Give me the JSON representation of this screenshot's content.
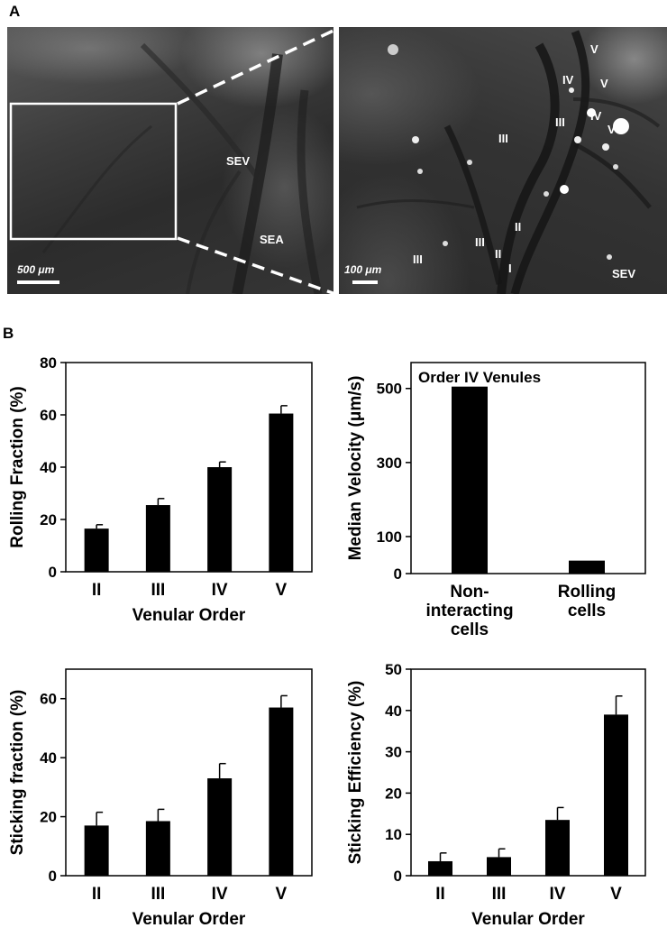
{
  "figure": {
    "panel_a": "A",
    "panel_b": "B",
    "left_image": {
      "labels": {
        "sev": "SEV",
        "sea": "SEA"
      },
      "scale_bar": "500 μm"
    },
    "right_image": {
      "labels": [
        {
          "text": "V",
          "fx": 0.788,
          "fy": 0.085
        },
        {
          "text": "IV",
          "fx": 0.704,
          "fy": 0.2
        },
        {
          "text": "V",
          "fx": 0.818,
          "fy": 0.213
        },
        {
          "text": "III",
          "fx": 0.68,
          "fy": 0.357
        },
        {
          "text": "IV",
          "fx": 0.788,
          "fy": 0.336
        },
        {
          "text": "V",
          "fx": 0.84,
          "fy": 0.385
        },
        {
          "text": "III",
          "fx": 0.508,
          "fy": 0.42
        },
        {
          "text": "II",
          "fx": 0.557,
          "fy": 0.75
        },
        {
          "text": "III",
          "fx": 0.438,
          "fy": 0.806
        },
        {
          "text": "II",
          "fx": 0.496,
          "fy": 0.85
        },
        {
          "text": "III",
          "fx": 0.246,
          "fy": 0.87
        },
        {
          "text": "I",
          "fx": 0.539,
          "fy": 0.907
        },
        {
          "text": "SEV",
          "fx": 0.855,
          "fy": 0.925
        }
      ],
      "scale_bar": "100 μm"
    }
  },
  "chart_data": [
    {
      "id": "rolling",
      "type": "bar",
      "categories": [
        "II",
        "III",
        "IV",
        "V"
      ],
      "values": [
        16.5,
        25.5,
        40,
        60.5
      ],
      "errors": [
        1.5,
        2.5,
        2,
        3
      ],
      "ylabel": "Rolling Fraction (%)",
      "xlabel": "Venular Order",
      "ylim": [
        0,
        80
      ],
      "yticks": [
        0,
        20,
        40,
        60,
        80
      ],
      "grid": false
    },
    {
      "id": "velocity",
      "type": "bar",
      "categories": [
        "Non-\ninteracting\ncells",
        "Rolling\ncells"
      ],
      "values": [
        505,
        35
      ],
      "ylabel": "Median Velocity (μm/s)",
      "xlabel": "",
      "annotation": "Order IV Venules",
      "ylim": [
        0,
        570
      ],
      "yticks": [
        0,
        100,
        300,
        500
      ],
      "grid": false
    },
    {
      "id": "sticking",
      "type": "bar",
      "categories": [
        "II",
        "III",
        "IV",
        "V"
      ],
      "values": [
        17,
        18.5,
        33,
        57
      ],
      "errors": [
        4.5,
        4,
        5,
        4
      ],
      "ylabel": "Sticking fraction (%)",
      "xlabel": "Venular Order",
      "ylim": [
        0,
        70
      ],
      "yticks": [
        0,
        20,
        40,
        60
      ],
      "grid": false
    },
    {
      "id": "efficiency",
      "type": "bar",
      "categories": [
        "II",
        "III",
        "IV",
        "V"
      ],
      "values": [
        3.5,
        4.5,
        13.5,
        39
      ],
      "errors": [
        2,
        2,
        3,
        4.5
      ],
      "ylabel": "Sticking Efficiency (%)",
      "xlabel": "Venular Order",
      "ylim": [
        0,
        50
      ],
      "yticks": [
        0,
        10,
        20,
        30,
        40,
        50
      ],
      "grid": false
    }
  ]
}
